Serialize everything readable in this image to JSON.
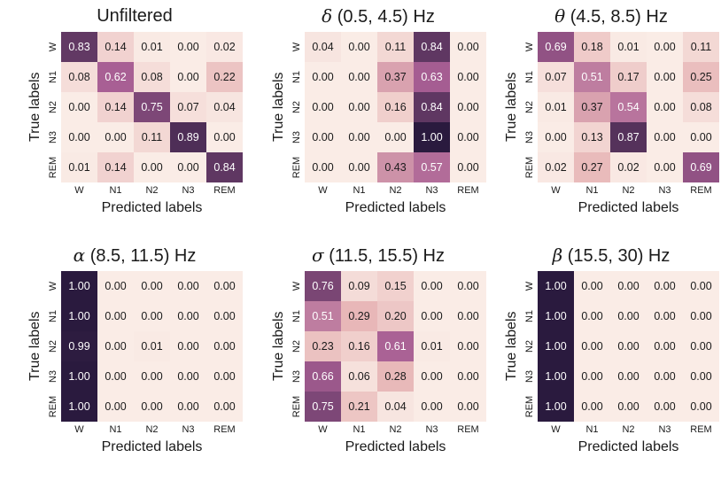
{
  "chart_data": [
    {
      "type": "heatmap",
      "greek": "",
      "title": "Unfiltered",
      "xlabel": "Predicted labels",
      "ylabel": "True labels",
      "x_categories": [
        "W",
        "N1",
        "N2",
        "N3",
        "REM"
      ],
      "y_categories": [
        "W",
        "N1",
        "N2",
        "N3",
        "REM"
      ],
      "values": [
        [
          "0.83",
          "0.14",
          "0.01",
          "0.00",
          "0.02"
        ],
        [
          "0.08",
          "0.62",
          "0.08",
          "0.00",
          "0.22"
        ],
        [
          "0.00",
          "0.14",
          "0.75",
          "0.07",
          "0.04"
        ],
        [
          "0.00",
          "0.00",
          "0.11",
          "0.89",
          "0.00"
        ],
        [
          "0.01",
          "0.14",
          "0.00",
          "0.00",
          "0.84"
        ]
      ],
      "vmin": 0,
      "vmax": 1
    },
    {
      "type": "heatmap",
      "greek": "δ",
      "title": " (0.5, 4.5) Hz",
      "xlabel": "Predicted labels",
      "ylabel": "True labels",
      "x_categories": [
        "W",
        "N1",
        "N2",
        "N3",
        "REM"
      ],
      "y_categories": [
        "W",
        "N1",
        "N2",
        "N3",
        "REM"
      ],
      "values": [
        [
          "0.04",
          "0.00",
          "0.11",
          "0.84",
          "0.00"
        ],
        [
          "0.00",
          "0.00",
          "0.37",
          "0.63",
          "0.00"
        ],
        [
          "0.00",
          "0.00",
          "0.16",
          "0.84",
          "0.00"
        ],
        [
          "0.00",
          "0.00",
          "0.00",
          "1.00",
          "0.00"
        ],
        [
          "0.00",
          "0.00",
          "0.43",
          "0.57",
          "0.00"
        ]
      ],
      "vmin": 0,
      "vmax": 1
    },
    {
      "type": "heatmap",
      "greek": "θ",
      "title": " (4.5, 8.5) Hz",
      "xlabel": "Predicted labels",
      "ylabel": "True labels",
      "x_categories": [
        "W",
        "N1",
        "N2",
        "N3",
        "REM"
      ],
      "y_categories": [
        "W",
        "N1",
        "N2",
        "N3",
        "REM"
      ],
      "values": [
        [
          "0.69",
          "0.18",
          "0.01",
          "0.00",
          "0.11"
        ],
        [
          "0.07",
          "0.51",
          "0.17",
          "0.00",
          "0.25"
        ],
        [
          "0.01",
          "0.37",
          "0.54",
          "0.00",
          "0.08"
        ],
        [
          "0.00",
          "0.13",
          "0.87",
          "0.00",
          "0.00"
        ],
        [
          "0.02",
          "0.27",
          "0.02",
          "0.00",
          "0.69"
        ]
      ],
      "vmin": 0,
      "vmax": 1
    },
    {
      "type": "heatmap",
      "greek": "α",
      "title": " (8.5, 11.5) Hz",
      "xlabel": "Predicted labels",
      "ylabel": "True labels",
      "x_categories": [
        "W",
        "N1",
        "N2",
        "N3",
        "REM"
      ],
      "y_categories": [
        "W",
        "N1",
        "N2",
        "N3",
        "REM"
      ],
      "values": [
        [
          "1.00",
          "0.00",
          "0.00",
          "0.00",
          "0.00"
        ],
        [
          "1.00",
          "0.00",
          "0.00",
          "0.00",
          "0.00"
        ],
        [
          "0.99",
          "0.00",
          "0.01",
          "0.00",
          "0.00"
        ],
        [
          "1.00",
          "0.00",
          "0.00",
          "0.00",
          "0.00"
        ],
        [
          "1.00",
          "0.00",
          "0.00",
          "0.00",
          "0.00"
        ]
      ],
      "vmin": 0,
      "vmax": 1
    },
    {
      "type": "heatmap",
      "greek": "σ",
      "title": " (11.5, 15.5) Hz",
      "xlabel": "Predicted labels",
      "ylabel": "True labels",
      "x_categories": [
        "W",
        "N1",
        "N2",
        "N3",
        "REM"
      ],
      "y_categories": [
        "W",
        "N1",
        "N2",
        "N3",
        "REM"
      ],
      "values": [
        [
          "0.76",
          "0.09",
          "0.15",
          "0.00",
          "0.00"
        ],
        [
          "0.51",
          "0.29",
          "0.20",
          "0.00",
          "0.00"
        ],
        [
          "0.23",
          "0.16",
          "0.61",
          "0.01",
          "0.00"
        ],
        [
          "0.66",
          "0.06",
          "0.28",
          "0.00",
          "0.00"
        ],
        [
          "0.75",
          "0.21",
          "0.04",
          "0.00",
          "0.00"
        ]
      ],
      "vmin": 0,
      "vmax": 1
    },
    {
      "type": "heatmap",
      "greek": "β",
      "title": " (15.5, 30) Hz",
      "xlabel": "Predicted labels",
      "ylabel": "True labels",
      "x_categories": [
        "W",
        "N1",
        "N2",
        "N3",
        "REM"
      ],
      "y_categories": [
        "W",
        "N1",
        "N2",
        "N3",
        "REM"
      ],
      "values": [
        [
          "1.00",
          "0.00",
          "0.00",
          "0.00",
          "0.00"
        ],
        [
          "1.00",
          "0.00",
          "0.00",
          "0.00",
          "0.00"
        ],
        [
          "1.00",
          "0.00",
          "0.00",
          "0.00",
          "0.00"
        ],
        [
          "1.00",
          "0.00",
          "0.00",
          "0.00",
          "0.00"
        ],
        [
          "1.00",
          "0.00",
          "0.00",
          "0.00",
          "0.00"
        ]
      ],
      "vmin": 0,
      "vmax": 1
    }
  ],
  "colors": {
    "low": "#faece6",
    "mid1": "#e7b5b6",
    "mid2": "#a85f94",
    "high": "#2a1a3e",
    "text_dark": "#1a1a1a",
    "text_light": "#ffffff"
  }
}
